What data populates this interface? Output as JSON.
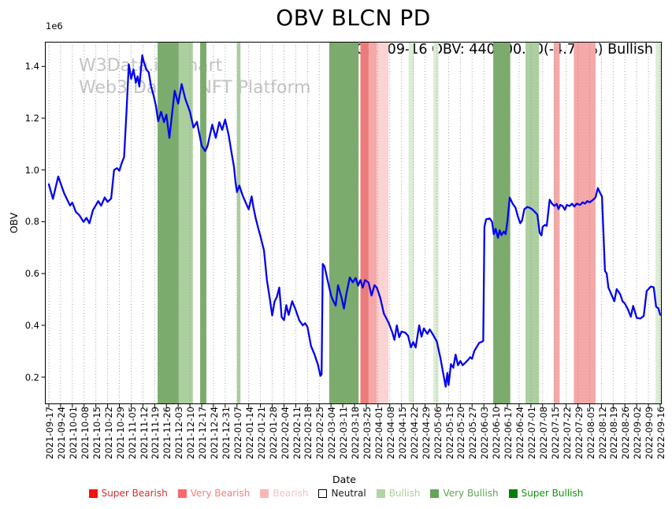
{
  "title": "OBV BLCN PD",
  "annotation": "2022-09-16 OBV: 440600.00(-4.73%) Bullish",
  "watermark": {
    "line1": "W3Data.io Chart",
    "line2": "Web3 Data & NFT Platform"
  },
  "axes": {
    "xlabel": "Date",
    "ylabel": "OBV",
    "y_offset_label": "1e6"
  },
  "legend": {
    "items": [
      {
        "label": "Super Bearish",
        "fill": "#fc0d0d",
        "border": "#fc0d0d",
        "text_color": "#d02f2f"
      },
      {
        "label": "Very Bearish",
        "fill": "#f96a6a",
        "border": "#f96a6a",
        "text_color": "#f47e7e"
      },
      {
        "label": "Bearish",
        "fill": "#fbb6b6",
        "border": "#fbb6b6",
        "text_color": "#f8bfbf"
      },
      {
        "label": "Neutral",
        "fill": "#ffffff",
        "border": "#000000",
        "text_color": "#1a1a1a"
      },
      {
        "label": "Bullish",
        "fill": "#afd5a3",
        "border": "#afd5a3",
        "text_color": "#a9d09d"
      },
      {
        "label": "Very Bullish",
        "fill": "#63a657",
        "border": "#63a657",
        "text_color": "#5da351"
      },
      {
        "label": "Super Bullish",
        "fill": "#077f07",
        "border": "#077f07",
        "text_color": "#12930f"
      }
    ]
  },
  "chart_data": {
    "type": "line",
    "title": "OBV BLCN PD",
    "xlabel": "Date",
    "ylabel": "OBV",
    "y_unit_multiplier": 1000000,
    "ylim": [
      0.0953,
      1.4953
    ],
    "yticks": [
      0.2,
      0.4,
      0.6,
      0.8,
      1.0,
      1.2,
      1.4
    ],
    "grid": "vertical-dotted",
    "legend_position": "bottom",
    "x_dates": [
      "2021-09-17",
      "2021-09-24",
      "2021-10-01",
      "2021-10-08",
      "2021-10-15",
      "2021-10-22",
      "2021-10-29",
      "2021-11-05",
      "2021-11-12",
      "2021-11-19",
      "2021-11-26",
      "2021-12-03",
      "2021-12-10",
      "2021-12-17",
      "2021-12-24",
      "2021-12-31",
      "2022-01-07",
      "2022-01-14",
      "2022-01-21",
      "2022-01-28",
      "2022-02-04",
      "2022-02-11",
      "2022-02-18",
      "2022-02-25",
      "2022-03-04",
      "2022-03-11",
      "2022-03-18",
      "2022-03-25",
      "2022-04-01",
      "2022-04-08",
      "2022-04-15",
      "2022-04-22",
      "2022-04-29",
      "2022-05-06",
      "2022-05-13",
      "2022-05-20",
      "2022-05-27",
      "2022-06-03",
      "2022-06-10",
      "2022-06-17",
      "2022-06-24",
      "2022-07-01",
      "2022-07-08",
      "2022-07-15",
      "2022-07-22",
      "2022-07-29",
      "2022-08-05",
      "2022-08-12",
      "2022-08-19",
      "2022-08-26",
      "2022-09-02",
      "2022-09-09",
      "2022-09-16"
    ],
    "band_colors": {
      "very_bullish": "#7cac6d",
      "bullish": "#abcf9e",
      "bullish_faint": "#dcedd5",
      "very_bearish": "#ef7a7a",
      "bearish": "#f5a8a8",
      "bearish_light": "#fbd3d3"
    },
    "bands": [
      {
        "from": 9.25,
        "to": 11.05,
        "type": "very_bullish"
      },
      {
        "from": 11.05,
        "to": 12.25,
        "type": "bullish"
      },
      {
        "from": 12.87,
        "to": 13.4,
        "type": "very_bullish"
      },
      {
        "from": 16.0,
        "to": 16.3,
        "type": "bullish"
      },
      {
        "from": 23.85,
        "to": 26.35,
        "type": "very_bullish"
      },
      {
        "from": 26.5,
        "to": 27.2,
        "type": "very_bearish"
      },
      {
        "from": 27.2,
        "to": 27.9,
        "type": "bearish"
      },
      {
        "from": 27.9,
        "to": 28.9,
        "type": "bearish_light"
      },
      {
        "from": 30.6,
        "to": 31.05,
        "type": "bullish_faint"
      },
      {
        "from": 32.7,
        "to": 33.15,
        "type": "bullish_faint"
      },
      {
        "from": 37.8,
        "to": 39.25,
        "type": "very_bullish"
      },
      {
        "from": 40.55,
        "to": 41.7,
        "type": "bullish"
      },
      {
        "from": 42.95,
        "to": 43.45,
        "type": "bearish"
      },
      {
        "from": 44.65,
        "to": 46.5,
        "type": "bearish"
      },
      {
        "from": 51.6,
        "to": 52.05,
        "type": "bullish_faint"
      }
    ],
    "series": [
      {
        "name": "OBV",
        "color": "#0404ee",
        "points": [
          [
            0.0,
            0.945
          ],
          [
            0.35,
            0.888
          ],
          [
            0.8,
            0.975
          ],
          [
            1.3,
            0.91
          ],
          [
            1.8,
            0.863
          ],
          [
            2.0,
            0.874
          ],
          [
            2.3,
            0.838
          ],
          [
            2.6,
            0.825
          ],
          [
            2.95,
            0.8
          ],
          [
            3.2,
            0.815
          ],
          [
            3.45,
            0.794
          ],
          [
            3.75,
            0.845
          ],
          [
            4.0,
            0.864
          ],
          [
            4.2,
            0.88
          ],
          [
            4.45,
            0.862
          ],
          [
            4.75,
            0.894
          ],
          [
            5.0,
            0.877
          ],
          [
            5.3,
            0.89
          ],
          [
            5.55,
            1.0
          ],
          [
            5.8,
            1.007
          ],
          [
            6.0,
            0.997
          ],
          [
            6.2,
            1.027
          ],
          [
            6.4,
            1.05
          ],
          [
            6.6,
            1.22
          ],
          [
            6.8,
            1.408
          ],
          [
            7.0,
            1.352
          ],
          [
            7.2,
            1.388
          ],
          [
            7.4,
            1.337
          ],
          [
            7.55,
            1.362
          ],
          [
            7.7,
            1.322
          ],
          [
            7.95,
            1.443
          ],
          [
            8.1,
            1.413
          ],
          [
            8.3,
            1.388
          ],
          [
            8.5,
            1.377
          ],
          [
            8.7,
            1.322
          ],
          [
            8.9,
            1.29
          ],
          [
            9.1,
            1.25
          ],
          [
            9.3,
            1.188
          ],
          [
            9.55,
            1.225
          ],
          [
            9.8,
            1.185
          ],
          [
            10.0,
            1.214
          ],
          [
            10.25,
            1.124
          ],
          [
            10.7,
            1.306
          ],
          [
            11.0,
            1.256
          ],
          [
            11.3,
            1.332
          ],
          [
            11.6,
            1.276
          ],
          [
            12.0,
            1.225
          ],
          [
            12.3,
            1.164
          ],
          [
            12.6,
            1.186
          ],
          [
            13.0,
            1.094
          ],
          [
            13.3,
            1.073
          ],
          [
            13.5,
            1.094
          ],
          [
            13.9,
            1.175
          ],
          [
            14.2,
            1.124
          ],
          [
            14.5,
            1.185
          ],
          [
            14.75,
            1.155
          ],
          [
            15.0,
            1.195
          ],
          [
            15.3,
            1.134
          ],
          [
            15.55,
            1.063
          ],
          [
            15.75,
            1.012
          ],
          [
            15.88,
            0.952
          ],
          [
            16.0,
            0.915
          ],
          [
            16.2,
            0.94
          ],
          [
            16.5,
            0.9
          ],
          [
            16.8,
            0.868
          ],
          [
            17.0,
            0.848
          ],
          [
            17.25,
            0.898
          ],
          [
            17.4,
            0.856
          ],
          [
            17.6,
            0.813
          ],
          [
            17.85,
            0.768
          ],
          [
            18.0,
            0.744
          ],
          [
            18.3,
            0.689
          ],
          [
            18.55,
            0.575
          ],
          [
            18.8,
            0.5
          ],
          [
            19.0,
            0.438
          ],
          [
            19.2,
            0.492
          ],
          [
            19.4,
            0.51
          ],
          [
            19.6,
            0.546
          ],
          [
            19.8,
            0.432
          ],
          [
            20.0,
            0.42
          ],
          [
            20.2,
            0.478
          ],
          [
            20.4,
            0.44
          ],
          [
            20.7,
            0.493
          ],
          [
            21.0,
            0.459
          ],
          [
            21.3,
            0.419
          ],
          [
            21.6,
            0.4
          ],
          [
            21.8,
            0.408
          ],
          [
            22.0,
            0.394
          ],
          [
            22.3,
            0.32
          ],
          [
            22.6,
            0.287
          ],
          [
            22.9,
            0.247
          ],
          [
            23.1,
            0.205
          ],
          [
            23.2,
            0.21
          ],
          [
            23.3,
            0.637
          ],
          [
            23.45,
            0.628
          ],
          [
            23.7,
            0.576
          ],
          [
            24.0,
            0.516
          ],
          [
            24.2,
            0.494
          ],
          [
            24.4,
            0.476
          ],
          [
            24.6,
            0.555
          ],
          [
            24.9,
            0.506
          ],
          [
            25.1,
            0.465
          ],
          [
            25.3,
            0.52
          ],
          [
            25.6,
            0.585
          ],
          [
            25.85,
            0.566
          ],
          [
            26.1,
            0.583
          ],
          [
            26.3,
            0.553
          ],
          [
            26.5,
            0.575
          ],
          [
            26.7,
            0.545
          ],
          [
            26.9,
            0.575
          ],
          [
            27.2,
            0.565
          ],
          [
            27.45,
            0.515
          ],
          [
            27.7,
            0.555
          ],
          [
            27.9,
            0.545
          ],
          [
            28.2,
            0.505
          ],
          [
            28.5,
            0.445
          ],
          [
            28.9,
            0.41
          ],
          [
            29.2,
            0.374
          ],
          [
            29.4,
            0.344
          ],
          [
            29.6,
            0.4
          ],
          [
            29.8,
            0.354
          ],
          [
            30.0,
            0.376
          ],
          [
            30.3,
            0.372
          ],
          [
            30.55,
            0.36
          ],
          [
            30.8,
            0.315
          ],
          [
            31.0,
            0.335
          ],
          [
            31.2,
            0.314
          ],
          [
            31.5,
            0.4
          ],
          [
            31.7,
            0.356
          ],
          [
            31.9,
            0.388
          ],
          [
            32.05,
            0.377
          ],
          [
            32.2,
            0.367
          ],
          [
            32.4,
            0.384
          ],
          [
            32.7,
            0.362
          ],
          [
            33.0,
            0.337
          ],
          [
            33.3,
            0.276
          ],
          [
            33.5,
            0.226
          ],
          [
            33.75,
            0.163
          ],
          [
            33.9,
            0.216
          ],
          [
            34.0,
            0.17
          ],
          [
            34.2,
            0.25
          ],
          [
            34.4,
            0.236
          ],
          [
            34.6,
            0.287
          ],
          [
            34.8,
            0.246
          ],
          [
            35.0,
            0.262
          ],
          [
            35.2,
            0.246
          ],
          [
            35.45,
            0.257
          ],
          [
            35.65,
            0.266
          ],
          [
            35.85,
            0.277
          ],
          [
            36.0,
            0.271
          ],
          [
            36.2,
            0.302
          ],
          [
            36.4,
            0.317
          ],
          [
            36.6,
            0.332
          ],
          [
            36.85,
            0.337
          ],
          [
            36.95,
            0.34
          ],
          [
            37.05,
            0.78
          ],
          [
            37.2,
            0.81
          ],
          [
            37.5,
            0.813
          ],
          [
            37.7,
            0.8
          ],
          [
            37.85,
            0.752
          ],
          [
            38.0,
            0.773
          ],
          [
            38.2,
            0.738
          ],
          [
            38.35,
            0.767
          ],
          [
            38.5,
            0.748
          ],
          [
            38.7,
            0.762
          ],
          [
            38.85,
            0.752
          ],
          [
            39.0,
            0.8
          ],
          [
            39.2,
            0.894
          ],
          [
            39.45,
            0.87
          ],
          [
            39.7,
            0.854
          ],
          [
            39.9,
            0.82
          ],
          [
            40.1,
            0.794
          ],
          [
            40.25,
            0.805
          ],
          [
            40.45,
            0.849
          ],
          [
            40.7,
            0.857
          ],
          [
            40.9,
            0.854
          ],
          [
            41.1,
            0.849
          ],
          [
            41.3,
            0.84
          ],
          [
            41.55,
            0.828
          ],
          [
            41.75,
            0.758
          ],
          [
            41.9,
            0.747
          ],
          [
            42.0,
            0.78
          ],
          [
            42.2,
            0.788
          ],
          [
            42.35,
            0.784
          ],
          [
            42.6,
            0.885
          ],
          [
            42.8,
            0.87
          ],
          [
            43.0,
            0.861
          ],
          [
            43.2,
            0.869
          ],
          [
            43.35,
            0.849
          ],
          [
            43.5,
            0.865
          ],
          [
            43.7,
            0.861
          ],
          [
            43.9,
            0.846
          ],
          [
            44.05,
            0.865
          ],
          [
            44.3,
            0.861
          ],
          [
            44.5,
            0.87
          ],
          [
            44.7,
            0.859
          ],
          [
            44.9,
            0.87
          ],
          [
            45.2,
            0.865
          ],
          [
            45.4,
            0.875
          ],
          [
            45.6,
            0.87
          ],
          [
            45.8,
            0.88
          ],
          [
            46.0,
            0.875
          ],
          [
            46.3,
            0.885
          ],
          [
            46.5,
            0.894
          ],
          [
            46.7,
            0.93
          ],
          [
            46.9,
            0.91
          ],
          [
            47.05,
            0.898
          ],
          [
            47.3,
            0.61
          ],
          [
            47.45,
            0.6
          ],
          [
            47.6,
            0.545
          ],
          [
            47.9,
            0.514
          ],
          [
            48.1,
            0.493
          ],
          [
            48.3,
            0.54
          ],
          [
            48.6,
            0.52
          ],
          [
            48.8,
            0.493
          ],
          [
            49.0,
            0.484
          ],
          [
            49.25,
            0.462
          ],
          [
            49.5,
            0.433
          ],
          [
            49.7,
            0.475
          ],
          [
            50.0,
            0.429
          ],
          [
            50.3,
            0.426
          ],
          [
            50.6,
            0.436
          ],
          [
            50.85,
            0.532
          ],
          [
            51.2,
            0.55
          ],
          [
            51.45,
            0.547
          ],
          [
            51.65,
            0.472
          ],
          [
            51.85,
            0.465
          ],
          [
            52.0,
            0.4406
          ]
        ]
      }
    ],
    "last_point": {
      "date": "2022-09-16",
      "obv": 440600.0,
      "change_pct": -4.73,
      "signal": "Bullish"
    }
  }
}
